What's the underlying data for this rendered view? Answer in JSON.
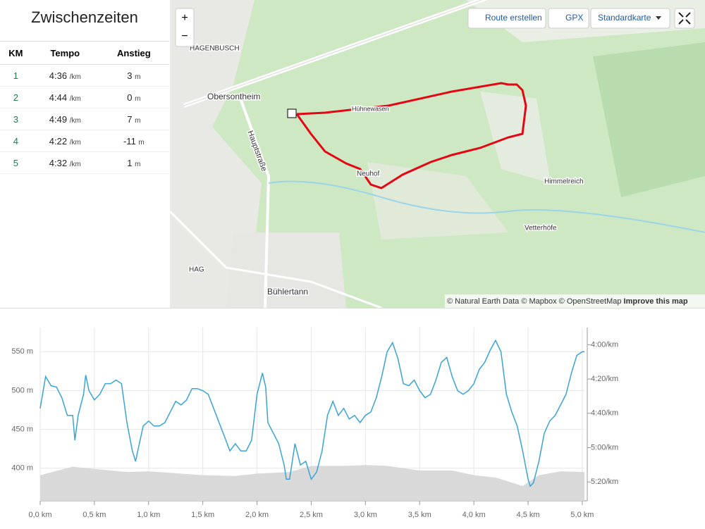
{
  "sidebar": {
    "title": "Zwischenzeiten",
    "columns": [
      "KM",
      "Tempo",
      "Anstieg"
    ],
    "rows": [
      {
        "km": "1",
        "pace": "4:36",
        "pace_unit": "/km",
        "climb": "3",
        "climb_unit": "m"
      },
      {
        "km": "2",
        "pace": "4:44",
        "pace_unit": "/km",
        "climb": "0",
        "climb_unit": "m"
      },
      {
        "km": "3",
        "pace": "4:49",
        "pace_unit": "/km",
        "climb": "7",
        "climb_unit": "m"
      },
      {
        "km": "4",
        "pace": "4:22",
        "pace_unit": "/km",
        "climb": "-11",
        "climb_unit": "m"
      },
      {
        "km": "5",
        "pace": "4:32",
        "pace_unit": "/km",
        "climb": "1",
        "climb_unit": "m"
      }
    ]
  },
  "map": {
    "zoom_in": "+",
    "zoom_out": "−",
    "buttons": [
      "Route erstellen",
      "GPX",
      "Standardkarte"
    ],
    "places": [
      {
        "label": "HAGENBUSCH"
      },
      {
        "label": "Obersontheim"
      },
      {
        "label": "Hauptstraße"
      },
      {
        "label": "Hühnewasen"
      },
      {
        "label": "Neuhof"
      },
      {
        "label": "Himmelreich"
      },
      {
        "label": "Vetterhöfe"
      },
      {
        "label": "HAG"
      },
      {
        "label": "Bühlertann"
      }
    ],
    "attribution": "© Natural Earth Data © Mapbox © OpenStreetMap",
    "attribution_link": "Improve this map"
  },
  "chart_data": {
    "type": "line",
    "xlim": [
      0,
      5.02
    ],
    "xticks": [
      {
        "value": 0,
        "label": "0,0 km"
      },
      {
        "value": 0.5,
        "label": "0,5 km"
      },
      {
        "value": 1,
        "label": "1,0 km"
      },
      {
        "value": 1.5,
        "label": "1,5 km"
      },
      {
        "value": 2,
        "label": "2,0 km"
      },
      {
        "value": 2.5,
        "label": "2,5 km"
      },
      {
        "value": 3,
        "label": "3,0 km"
      },
      {
        "value": 3.5,
        "label": "3,5 km"
      },
      {
        "value": 4,
        "label": "4,0 km"
      },
      {
        "value": 4.5,
        "label": "4,5 km"
      },
      {
        "value": 5,
        "label": "5,0 km"
      }
    ],
    "ylim": [
      358,
      581
    ],
    "yticks": [
      {
        "value": 400,
        "label": "400 m"
      },
      {
        "value": 450,
        "label": "450 m"
      },
      {
        "value": 500,
        "label": "500 m"
      },
      {
        "value": 550,
        "label": "550 m"
      }
    ],
    "y2lim": [
      331,
      230
    ],
    "y2ticks": [
      {
        "value": 240,
        "label": "4:00/km"
      },
      {
        "value": 260,
        "label": "4:20/km"
      },
      {
        "value": 280,
        "label": "4:40/km"
      },
      {
        "value": 300,
        "label": "5:00/km"
      },
      {
        "value": 320,
        "label": "5:20/km"
      }
    ],
    "grid": true,
    "series": [
      {
        "type": "area",
        "color": "#d9d9d9",
        "x": [
          0,
          0.3,
          0.5,
          0.8,
          1.0,
          1.2,
          1.5,
          1.8,
          2.0,
          2.3,
          2.5,
          2.8,
          3.0,
          3.2,
          3.5,
          3.8,
          4.0,
          4.2,
          4.45,
          4.6,
          4.8,
          5.02
        ],
        "values": [
          391,
          402,
          399,
          395,
          396,
          394,
          391,
          390,
          393,
          395,
          403,
          403,
          404,
          403,
          397,
          397,
          391,
          388,
          377,
          391,
          396,
          395
        ]
      },
      {
        "type": "line",
        "color": "#3aa3d6",
        "axis": "y2",
        "x": [
          0,
          0.05,
          0.1,
          0.15,
          0.2,
          0.25,
          0.3,
          0.32,
          0.35,
          0.4,
          0.42,
          0.45,
          0.5,
          0.55,
          0.6,
          0.65,
          0.7,
          0.75,
          0.8,
          0.85,
          0.88,
          0.9,
          0.95,
          1.0,
          1.05,
          1.1,
          1.15,
          1.2,
          1.25,
          1.3,
          1.35,
          1.4,
          1.45,
          1.5,
          1.55,
          1.6,
          1.65,
          1.7,
          1.75,
          1.8,
          1.85,
          1.9,
          1.95,
          2.0,
          2.05,
          2.08,
          2.1,
          2.15,
          2.2,
          2.25,
          2.27,
          2.3,
          2.35,
          2.4,
          2.45,
          2.5,
          2.55,
          2.6,
          2.65,
          2.7,
          2.75,
          2.8,
          2.85,
          2.9,
          2.95,
          3.0,
          3.05,
          3.1,
          3.15,
          3.2,
          3.25,
          3.3,
          3.35,
          3.4,
          3.45,
          3.5,
          3.55,
          3.6,
          3.65,
          3.7,
          3.75,
          3.8,
          3.85,
          3.9,
          3.95,
          4.0,
          4.05,
          4.1,
          4.15,
          4.2,
          4.25,
          4.3,
          4.35,
          4.4,
          4.45,
          4.5,
          4.52,
          4.55,
          4.6,
          4.65,
          4.7,
          4.75,
          4.8,
          4.85,
          4.9,
          4.95,
          5.0,
          5.02
        ],
        "values": [
          277.1,
          258.6,
          263.9,
          264.7,
          270.9,
          281.2,
          281.2,
          295.7,
          281.2,
          268.9,
          257.7,
          266.8,
          272.2,
          268.9,
          262.7,
          262.7,
          260.6,
          262.7,
          285.4,
          301.9,
          308.0,
          301.9,
          287.4,
          284.5,
          287.4,
          287.4,
          285.4,
          279.2,
          273.0,
          275.1,
          272.2,
          265.6,
          265.6,
          266.8,
          268.9,
          277.1,
          285.4,
          293.6,
          301.9,
          297.7,
          301.9,
          301.9,
          295.7,
          268.9,
          256.5,
          264.7,
          285.4,
          291.5,
          297.7,
          310.1,
          318.4,
          318.4,
          297.7,
          310.1,
          308.0,
          318.4,
          314.2,
          301.9,
          281.2,
          273.0,
          281.2,
          277.1,
          283.3,
          281.2,
          285.4,
          281.2,
          279.2,
          270.9,
          258.6,
          244.1,
          238.8,
          248.2,
          262.7,
          263.9,
          260.6,
          266.8,
          270.9,
          268.9,
          260.6,
          250.3,
          247.4,
          258.6,
          266.8,
          268.9,
          266.8,
          262.7,
          254.4,
          250.3,
          243.3,
          237.5,
          244.1,
          268.9,
          279.2,
          287.4,
          301.9,
          318.4,
          322.5,
          320.4,
          308.0,
          291.5,
          284.5,
          281.2,
          275.1,
          268.9,
          256.5,
          246.2,
          244.1,
          244.1
        ]
      }
    ]
  }
}
